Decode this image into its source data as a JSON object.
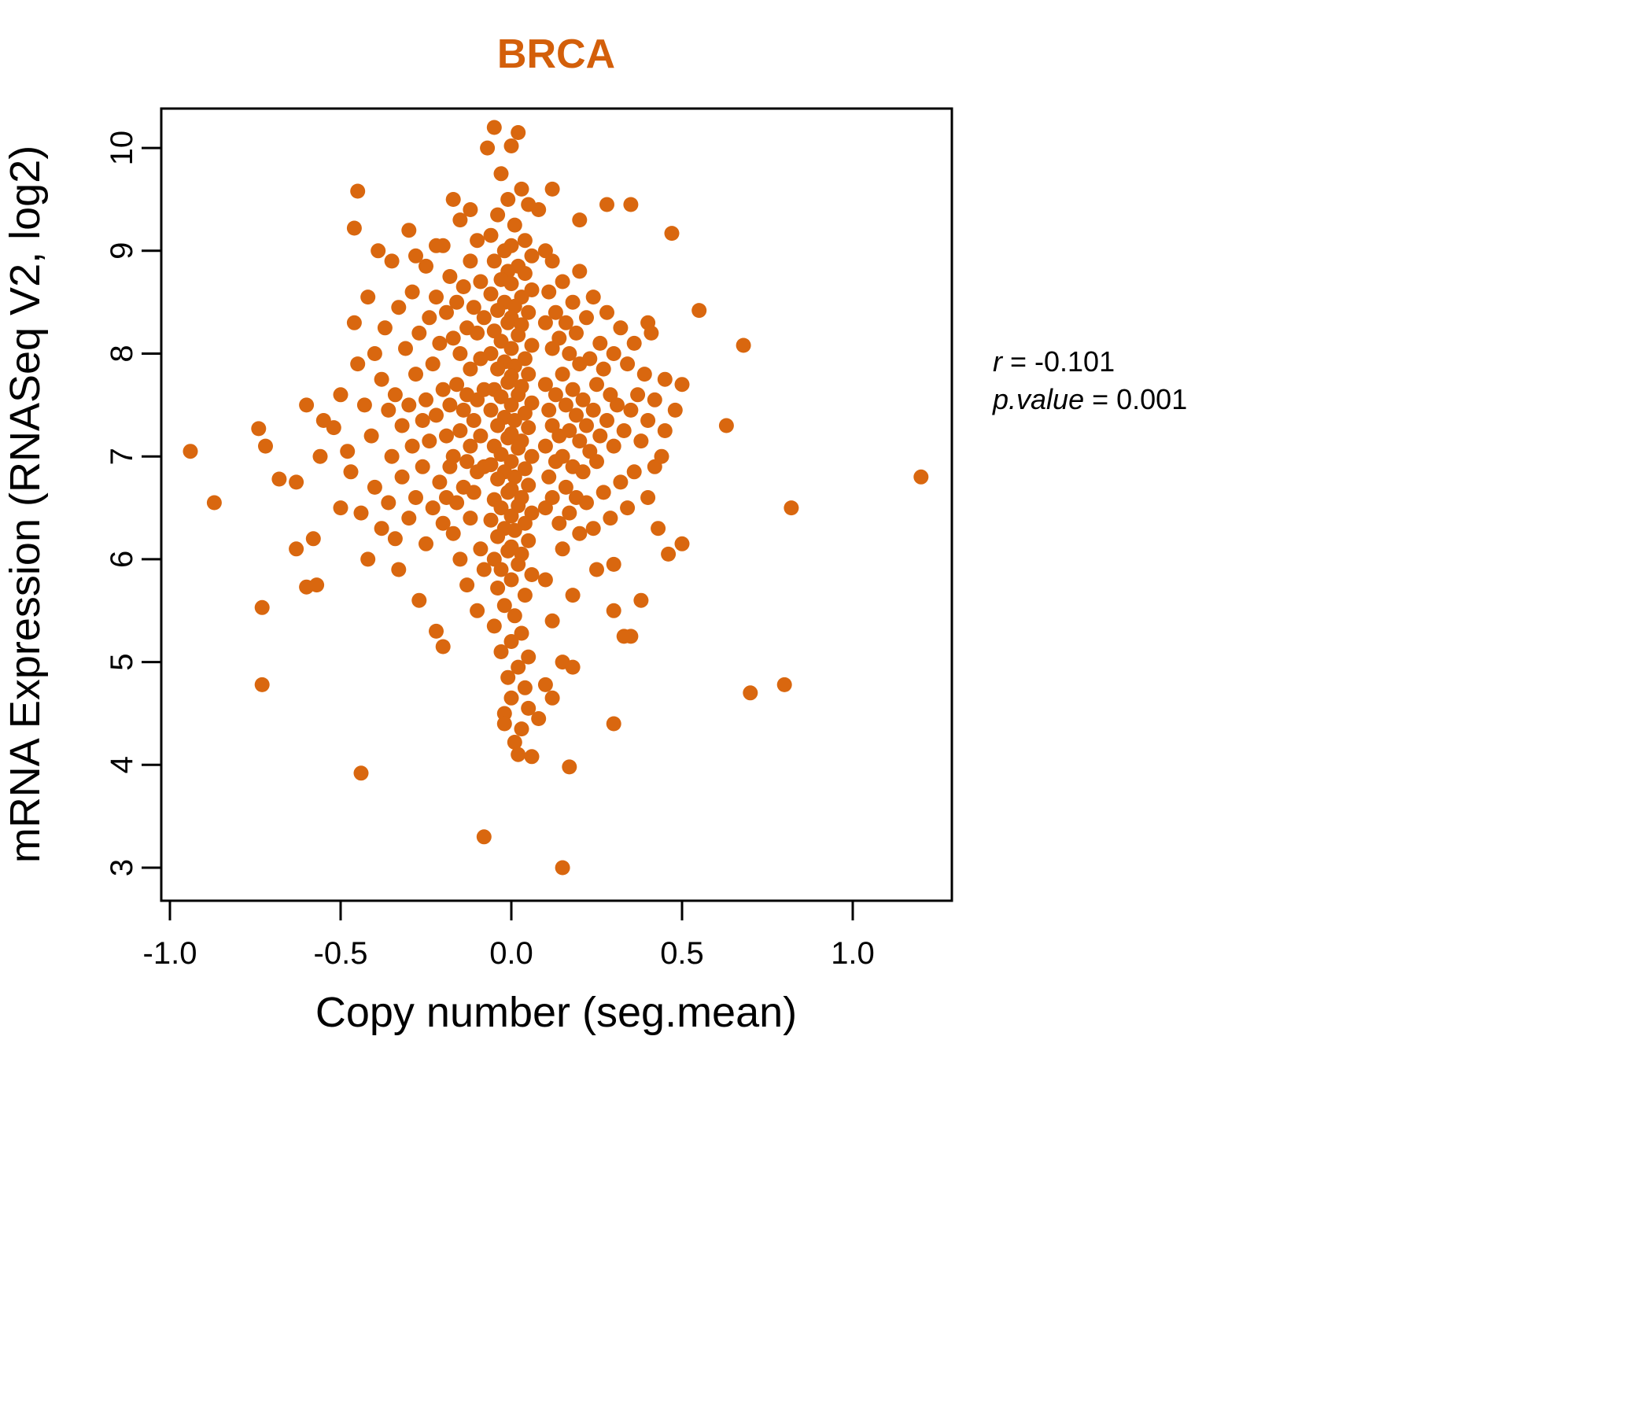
{
  "chart_data": {
    "type": "scatter",
    "title": "BRCA",
    "xlabel": "Copy number (seg.mean)",
    "ylabel": "mRNA Expression (RNASeq V2, log2)",
    "xlim": [
      -1.02,
      1.28
    ],
    "ylim": [
      2.7,
      10.4
    ],
    "x_tick_values": [
      -1.0,
      -0.5,
      0.0,
      0.5,
      1.0
    ],
    "x_tick_labels": [
      "-1.0",
      "-0.5",
      "0.0",
      "0.5",
      "1.0"
    ],
    "y_tick_values": [
      3,
      4,
      5,
      6,
      7,
      8,
      9,
      10
    ],
    "y_tick_labels": [
      "3",
      "4",
      "5",
      "6",
      "7",
      "8",
      "9",
      "10"
    ],
    "grid": false,
    "legend": "none",
    "title_color": "#d35f0a",
    "point_color": "#d9670f",
    "stats": {
      "r": -0.101,
      "p_value": 0.001
    },
    "annotation": {
      "r_var": "r",
      "r_val": " = -0.101",
      "p_var": "p.value",
      "p_val": " = 0.001"
    },
    "points": [
      [
        -0.94,
        7.05
      ],
      [
        -0.87,
        6.55
      ],
      [
        -0.74,
        7.27
      ],
      [
        -0.72,
        7.1
      ],
      [
        -0.73,
        5.53
      ],
      [
        -0.73,
        4.78
      ],
      [
        -0.68,
        6.78
      ],
      [
        -0.63,
        6.75
      ],
      [
        -0.63,
        6.1
      ],
      [
        -0.6,
        7.5
      ],
      [
        -0.6,
        5.73
      ],
      [
        -0.58,
        6.2
      ],
      [
        -0.57,
        5.75
      ],
      [
        -0.55,
        7.35
      ],
      [
        -0.56,
        7.0
      ],
      [
        -0.45,
        9.58
      ],
      [
        -0.46,
        9.22
      ],
      [
        -0.44,
        3.92
      ],
      [
        1.2,
        6.8
      ],
      [
        0.82,
        6.5
      ],
      [
        0.8,
        4.78
      ],
      [
        0.7,
        4.7
      ],
      [
        0.68,
        8.08
      ],
      [
        0.63,
        7.3
      ],
      [
        0.55,
        8.42
      ],
      [
        0.47,
        9.17
      ],
      [
        0.5,
        6.15
      ],
      [
        0.15,
        3.0
      ],
      [
        -0.08,
        3.3
      ],
      [
        0.17,
        3.98
      ],
      [
        0.3,
        4.4
      ],
      [
        0.35,
        5.25
      ],
      [
        0.38,
        5.6
      ],
      [
        0.42,
        6.9
      ],
      [
        0.45,
        7.75
      ],
      [
        0.4,
        8.3
      ],
      [
        0.35,
        9.45
      ],
      [
        0.28,
        9.45
      ],
      [
        0.2,
        9.3
      ],
      [
        -0.52,
        7.28
      ],
      [
        -0.5,
        7.6
      ],
      [
        -0.5,
        6.5
      ],
      [
        -0.48,
        7.05
      ],
      [
        -0.47,
        6.85
      ],
      [
        -0.46,
        8.3
      ],
      [
        -0.45,
        7.9
      ],
      [
        -0.44,
        6.45
      ],
      [
        -0.43,
        7.5
      ],
      [
        -0.42,
        8.55
      ],
      [
        -0.42,
        6.0
      ],
      [
        -0.41,
        7.2
      ],
      [
        -0.4,
        8.0
      ],
      [
        -0.4,
        6.7
      ],
      [
        -0.39,
        9.0
      ],
      [
        -0.38,
        7.75
      ],
      [
        -0.38,
        6.3
      ],
      [
        -0.37,
        8.25
      ],
      [
        -0.36,
        7.45
      ],
      [
        -0.36,
        6.55
      ],
      [
        -0.35,
        8.9
      ],
      [
        -0.35,
        7.0
      ],
      [
        -0.34,
        7.6
      ],
      [
        -0.34,
        6.2
      ],
      [
        -0.33,
        8.45
      ],
      [
        -0.33,
        5.9
      ],
      [
        -0.32,
        7.3
      ],
      [
        -0.32,
        6.8
      ],
      [
        -0.31,
        8.05
      ],
      [
        -0.3,
        9.2
      ],
      [
        -0.3,
        7.5
      ],
      [
        -0.3,
        6.4
      ],
      [
        -0.29,
        8.6
      ],
      [
        -0.29,
        7.1
      ],
      [
        -0.28,
        7.8
      ],
      [
        -0.28,
        6.6
      ],
      [
        -0.27,
        8.2
      ],
      [
        -0.27,
        5.6
      ],
      [
        -0.26,
        7.35
      ],
      [
        -0.26,
        6.9
      ],
      [
        -0.25,
        8.85
      ],
      [
        -0.25,
        7.55
      ],
      [
        -0.25,
        6.15
      ],
      [
        -0.24,
        8.35
      ],
      [
        -0.24,
        7.15
      ],
      [
        -0.23,
        7.9
      ],
      [
        -0.23,
        6.5
      ],
      [
        -0.22,
        8.55
      ],
      [
        -0.22,
        7.4
      ],
      [
        -0.22,
        5.3
      ],
      [
        -0.21,
        8.1
      ],
      [
        -0.21,
        6.75
      ],
      [
        -0.2,
        9.05
      ],
      [
        -0.2,
        7.65
      ],
      [
        -0.2,
        6.35
      ],
      [
        -0.2,
        5.15
      ],
      [
        -0.19,
        8.4
      ],
      [
        -0.19,
        7.2
      ],
      [
        -0.19,
        6.6
      ],
      [
        -0.18,
        8.75
      ],
      [
        -0.18,
        7.5
      ],
      [
        -0.18,
        6.9
      ],
      [
        -0.17,
        8.15
      ],
      [
        -0.17,
        7.0
      ],
      [
        -0.17,
        6.25
      ],
      [
        -0.16,
        8.5
      ],
      [
        -0.16,
        7.7
      ],
      [
        -0.16,
        6.55
      ],
      [
        -0.15,
        9.3
      ],
      [
        -0.15,
        8.0
      ],
      [
        -0.15,
        7.25
      ],
      [
        -0.15,
        6.0
      ],
      [
        -0.14,
        8.65
      ],
      [
        -0.14,
        7.45
      ],
      [
        -0.14,
        6.7
      ],
      [
        -0.13,
        8.25
      ],
      [
        -0.13,
        7.6
      ],
      [
        -0.13,
        6.95
      ],
      [
        -0.13,
        5.75
      ],
      [
        -0.12,
        8.9
      ],
      [
        -0.12,
        7.85
      ],
      [
        -0.12,
        7.1
      ],
      [
        -0.12,
        6.4
      ],
      [
        -0.11,
        8.45
      ],
      [
        -0.11,
        7.35
      ],
      [
        -0.11,
        6.65
      ],
      [
        -0.1,
        9.1
      ],
      [
        -0.1,
        8.2
      ],
      [
        -0.1,
        7.55
      ],
      [
        -0.1,
        6.85
      ],
      [
        -0.1,
        5.5
      ],
      [
        -0.09,
        8.7
      ],
      [
        -0.09,
        7.95
      ],
      [
        -0.09,
        7.2
      ],
      [
        -0.09,
        6.1
      ],
      [
        -0.08,
        8.35
      ],
      [
        -0.08,
        7.65
      ],
      [
        -0.08,
        6.9
      ],
      [
        -0.08,
        5.9
      ],
      [
        -0.17,
        9.5
      ],
      [
        -0.12,
        9.4
      ],
      [
        0.08,
        9.4
      ],
      [
        -0.22,
        9.05
      ],
      [
        0.12,
        9.6
      ],
      [
        -0.28,
        8.95
      ],
      [
        -0.07,
        10.0
      ],
      [
        -0.05,
        10.2
      ],
      [
        0.02,
        10.15
      ],
      [
        0.0,
        10.02
      ],
      [
        -0.03,
        9.75
      ],
      [
        0.03,
        9.6
      ],
      [
        -0.01,
        9.5
      ],
      [
        0.05,
        9.45
      ],
      [
        -0.04,
        9.35
      ],
      [
        0.01,
        9.25
      ],
      [
        -0.06,
        9.15
      ],
      [
        0.04,
        9.1
      ],
      [
        0.0,
        9.05
      ],
      [
        -0.02,
        9.0
      ],
      [
        0.06,
        8.95
      ],
      [
        -0.05,
        8.9
      ],
      [
        0.02,
        8.85
      ],
      [
        -0.01,
        8.8
      ],
      [
        0.04,
        8.78
      ],
      [
        -0.03,
        8.72
      ],
      [
        0.0,
        8.68
      ],
      [
        0.06,
        8.62
      ],
      [
        -0.06,
        8.58
      ],
      [
        0.03,
        8.55
      ],
      [
        -0.02,
        8.5
      ],
      [
        0.01,
        8.46
      ],
      [
        -0.04,
        8.42
      ],
      [
        0.05,
        8.4
      ],
      [
        0.0,
        8.35
      ],
      [
        -0.01,
        8.3
      ],
      [
        0.03,
        8.28
      ],
      [
        -0.05,
        8.22
      ],
      [
        0.02,
        8.18
      ],
      [
        -0.03,
        8.12
      ],
      [
        0.06,
        8.08
      ],
      [
        0.0,
        8.05
      ],
      [
        -0.06,
        8.0
      ],
      [
        0.04,
        7.95
      ],
      [
        -0.02,
        7.92
      ],
      [
        0.01,
        7.88
      ],
      [
        -0.04,
        7.85
      ],
      [
        0.05,
        7.8
      ],
      [
        0.0,
        7.78
      ],
      [
        -0.01,
        7.72
      ],
      [
        0.03,
        7.68
      ],
      [
        -0.05,
        7.65
      ],
      [
        0.02,
        7.6
      ],
      [
        -0.03,
        7.58
      ],
      [
        0.06,
        7.52
      ],
      [
        0.0,
        7.5
      ],
      [
        -0.06,
        7.45
      ],
      [
        0.04,
        7.42
      ],
      [
        -0.02,
        7.38
      ],
      [
        0.01,
        7.35
      ],
      [
        -0.04,
        7.3
      ],
      [
        0.05,
        7.28
      ],
      [
        0.0,
        7.22
      ],
      [
        -0.01,
        7.18
      ],
      [
        0.03,
        7.15
      ],
      [
        -0.05,
        7.1
      ],
      [
        0.02,
        7.08
      ],
      [
        -0.03,
        7.02
      ],
      [
        0.06,
        7.0
      ],
      [
        0.0,
        6.95
      ],
      [
        -0.06,
        6.92
      ],
      [
        0.04,
        6.88
      ],
      [
        -0.02,
        6.85
      ],
      [
        0.01,
        6.8
      ],
      [
        -0.04,
        6.78
      ],
      [
        0.05,
        6.72
      ],
      [
        0.0,
        6.68
      ],
      [
        -0.01,
        6.65
      ],
      [
        0.03,
        6.6
      ],
      [
        -0.05,
        6.58
      ],
      [
        0.02,
        6.52
      ],
      [
        -0.03,
        6.5
      ],
      [
        0.06,
        6.45
      ],
      [
        0.0,
        6.42
      ],
      [
        -0.06,
        6.38
      ],
      [
        0.04,
        6.35
      ],
      [
        -0.02,
        6.3
      ],
      [
        0.01,
        6.28
      ],
      [
        -0.04,
        6.22
      ],
      [
        0.05,
        6.18
      ],
      [
        0.0,
        6.12
      ],
      [
        -0.01,
        6.08
      ],
      [
        0.03,
        6.05
      ],
      [
        -0.05,
        6.0
      ],
      [
        0.02,
        5.95
      ],
      [
        -0.03,
        5.9
      ],
      [
        0.06,
        5.85
      ],
      [
        0.0,
        5.8
      ],
      [
        -0.04,
        5.72
      ],
      [
        0.04,
        5.65
      ],
      [
        -0.02,
        5.55
      ],
      [
        0.01,
        5.45
      ],
      [
        -0.05,
        5.35
      ],
      [
        0.03,
        5.28
      ],
      [
        0.0,
        5.2
      ],
      [
        -0.03,
        5.1
      ],
      [
        0.05,
        5.05
      ],
      [
        0.02,
        4.95
      ],
      [
        -0.01,
        4.85
      ],
      [
        0.04,
        4.75
      ],
      [
        0.0,
        4.65
      ],
      [
        -0.02,
        4.5
      ],
      [
        0.03,
        4.35
      ],
      [
        0.01,
        4.22
      ],
      [
        0.02,
        4.1
      ],
      [
        0.1,
        9.0
      ],
      [
        0.1,
        8.3
      ],
      [
        0.1,
        7.7
      ],
      [
        0.1,
        7.1
      ],
      [
        0.1,
        6.5
      ],
      [
        0.1,
        5.8
      ],
      [
        0.11,
        8.6
      ],
      [
        0.11,
        7.45
      ],
      [
        0.11,
        6.8
      ],
      [
        0.12,
        8.9
      ],
      [
        0.12,
        8.05
      ],
      [
        0.12,
        7.3
      ],
      [
        0.12,
        6.6
      ],
      [
        0.12,
        5.4
      ],
      [
        0.13,
        8.4
      ],
      [
        0.13,
        7.6
      ],
      [
        0.13,
        6.95
      ],
      [
        0.14,
        8.15
      ],
      [
        0.14,
        7.2
      ],
      [
        0.14,
        6.35
      ],
      [
        0.15,
        8.7
      ],
      [
        0.15,
        7.8
      ],
      [
        0.15,
        7.0
      ],
      [
        0.15,
        6.1
      ],
      [
        0.15,
        5.0
      ],
      [
        0.16,
        8.3
      ],
      [
        0.16,
        7.5
      ],
      [
        0.16,
        6.7
      ],
      [
        0.17,
        8.0
      ],
      [
        0.17,
        7.25
      ],
      [
        0.17,
        6.45
      ],
      [
        0.18,
        8.5
      ],
      [
        0.18,
        7.65
      ],
      [
        0.18,
        6.9
      ],
      [
        0.18,
        5.65
      ],
      [
        0.19,
        8.2
      ],
      [
        0.19,
        7.4
      ],
      [
        0.19,
        6.6
      ],
      [
        0.2,
        8.8
      ],
      [
        0.2,
        7.9
      ],
      [
        0.2,
        7.15
      ],
      [
        0.2,
        6.25
      ],
      [
        0.21,
        7.55
      ],
      [
        0.21,
        6.85
      ],
      [
        0.22,
        8.35
      ],
      [
        0.22,
        7.3
      ],
      [
        0.22,
        6.55
      ],
      [
        0.23,
        7.95
      ],
      [
        0.23,
        7.05
      ],
      [
        0.24,
        8.55
      ],
      [
        0.24,
        7.45
      ],
      [
        0.24,
        6.3
      ],
      [
        0.25,
        7.7
      ],
      [
        0.25,
        6.95
      ],
      [
        0.25,
        5.9
      ],
      [
        0.26,
        8.1
      ],
      [
        0.26,
        7.2
      ],
      [
        0.27,
        7.85
      ],
      [
        0.27,
        6.65
      ],
      [
        0.28,
        8.4
      ],
      [
        0.28,
        7.35
      ],
      [
        0.29,
        7.6
      ],
      [
        0.29,
        6.4
      ],
      [
        0.3,
        8.0
      ],
      [
        0.3,
        7.1
      ],
      [
        0.3,
        5.95
      ],
      [
        0.31,
        7.5
      ],
      [
        0.32,
        8.25
      ],
      [
        0.32,
        6.75
      ],
      [
        0.33,
        7.25
      ],
      [
        0.34,
        7.9
      ],
      [
        0.34,
        6.5
      ],
      [
        0.35,
        7.45
      ],
      [
        0.36,
        8.1
      ],
      [
        0.36,
        6.85
      ],
      [
        0.37,
        7.6
      ],
      [
        0.38,
        7.15
      ],
      [
        0.39,
        7.8
      ],
      [
        0.4,
        6.6
      ],
      [
        0.4,
        7.35
      ],
      [
        0.41,
        8.2
      ],
      [
        0.42,
        7.55
      ],
      [
        0.43,
        6.3
      ],
      [
        0.44,
        7.0
      ],
      [
        0.45,
        7.25
      ],
      [
        0.46,
        6.05
      ],
      [
        0.48,
        7.45
      ],
      [
        0.5,
        7.7
      ],
      [
        0.08,
        4.45
      ],
      [
        0.12,
        4.65
      ],
      [
        0.1,
        4.78
      ],
      [
        -0.02,
        4.4
      ],
      [
        0.06,
        4.08
      ],
      [
        0.18,
        4.95
      ],
      [
        0.3,
        5.5
      ],
      [
        0.33,
        5.25
      ],
      [
        0.05,
        4.55
      ]
    ]
  }
}
